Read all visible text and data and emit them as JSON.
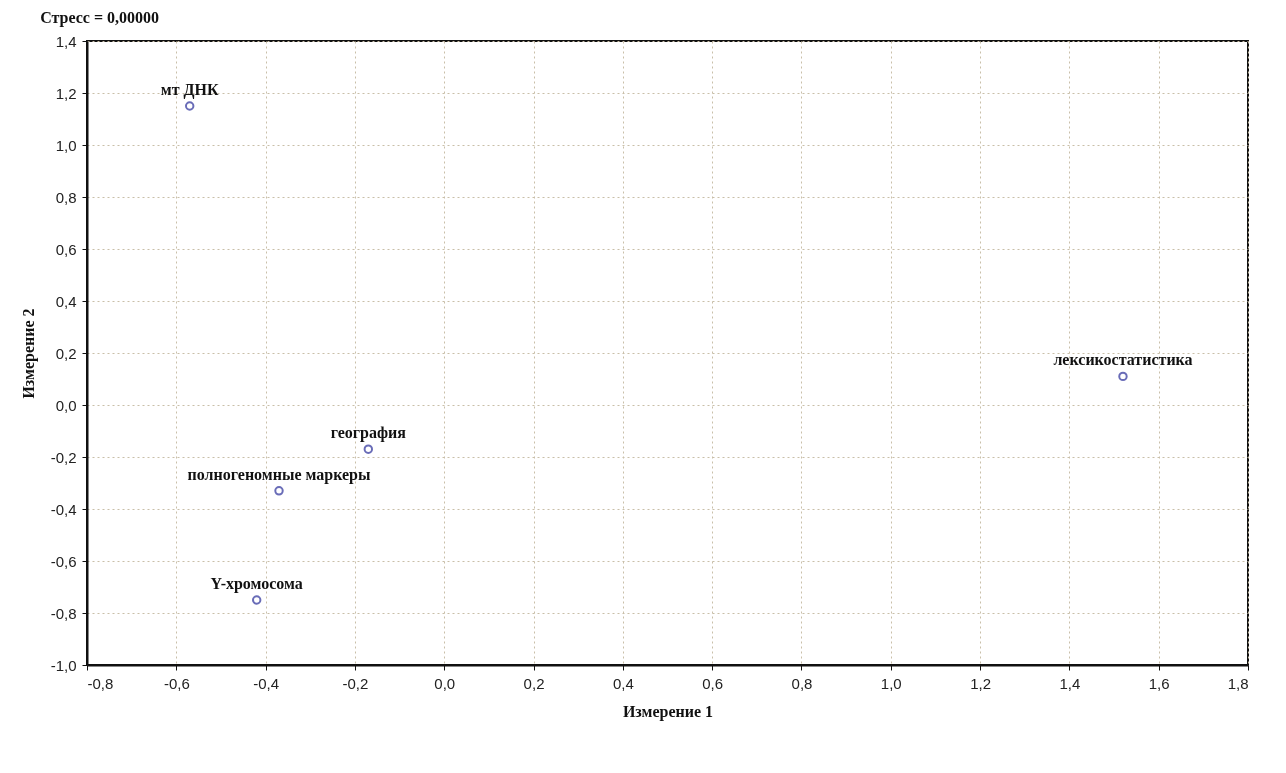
{
  "chart_data": {
    "type": "scatter",
    "title": "Стресс = 0,00000",
    "xlabel": "Измерение 1",
    "ylabel": "Измерение 2",
    "series": [
      {
        "name": "мт ДНК",
        "color": "#2a2f9a",
        "x": [
          -0.57
        ],
        "values": [
          1.15
        ]
      },
      {
        "name": "география",
        "color": "#2a2f9a",
        "x": [
          -0.17
        ],
        "values": [
          -0.17
        ]
      },
      {
        "name": "полногеномные маркеры",
        "color": "#2a2f9a",
        "x": [
          -0.37
        ],
        "values": [
          -0.33
        ]
      },
      {
        "name": "Y-хромосома",
        "color": "#2a2f9a",
        "x": [
          -0.42
        ],
        "values": [
          -0.75
        ]
      },
      {
        "name": "лексикостатистика",
        "color": "#2a2f9a",
        "x": [
          1.52
        ],
        "values": [
          0.11
        ]
      }
    ],
    "xlim": [
      -0.8,
      1.8
    ],
    "xticks": [
      {
        "value": -0.8,
        "label": "-0,8"
      },
      {
        "value": -0.6,
        "label": "-0,6"
      },
      {
        "value": -0.4,
        "label": "-0,4"
      },
      {
        "value": -0.2,
        "label": "-0,2"
      },
      {
        "value": 0,
        "label": "0,0"
      },
      {
        "value": 0.2,
        "label": "0,2"
      },
      {
        "value": 0.4,
        "label": "0,4"
      },
      {
        "value": 0.6,
        "label": "0,6"
      },
      {
        "value": 0.8,
        "label": "0,8"
      },
      {
        "value": 1,
        "label": "1,0"
      },
      {
        "value": 1.2,
        "label": "1,2"
      },
      {
        "value": 1.4,
        "label": "1,4"
      },
      {
        "value": 1.6,
        "label": "1,6"
      },
      {
        "value": 1.8,
        "label": "1,8"
      }
    ],
    "ylim": [
      -1,
      1.4
    ],
    "yticks": [
      {
        "value": -1,
        "label": "-1,0"
      },
      {
        "value": -0.8,
        "label": "-0,8"
      },
      {
        "value": -0.6,
        "label": "-0,6"
      },
      {
        "value": -0.4,
        "label": "-0,4"
      },
      {
        "value": -0.2,
        "label": "-0,2"
      },
      {
        "value": 0,
        "label": "0,0"
      },
      {
        "value": 0.2,
        "label": "0,2"
      },
      {
        "value": 0.4,
        "label": "0,4"
      },
      {
        "value": 0.6,
        "label": "0,6"
      },
      {
        "value": 0.8,
        "label": "0,8"
      },
      {
        "value": 1,
        "label": "1,0"
      },
      {
        "value": 1.2,
        "label": "1,2"
      },
      {
        "value": 1.4,
        "label": "1,4"
      }
    ],
    "grid": true,
    "marker": "circle",
    "legend": false
  }
}
